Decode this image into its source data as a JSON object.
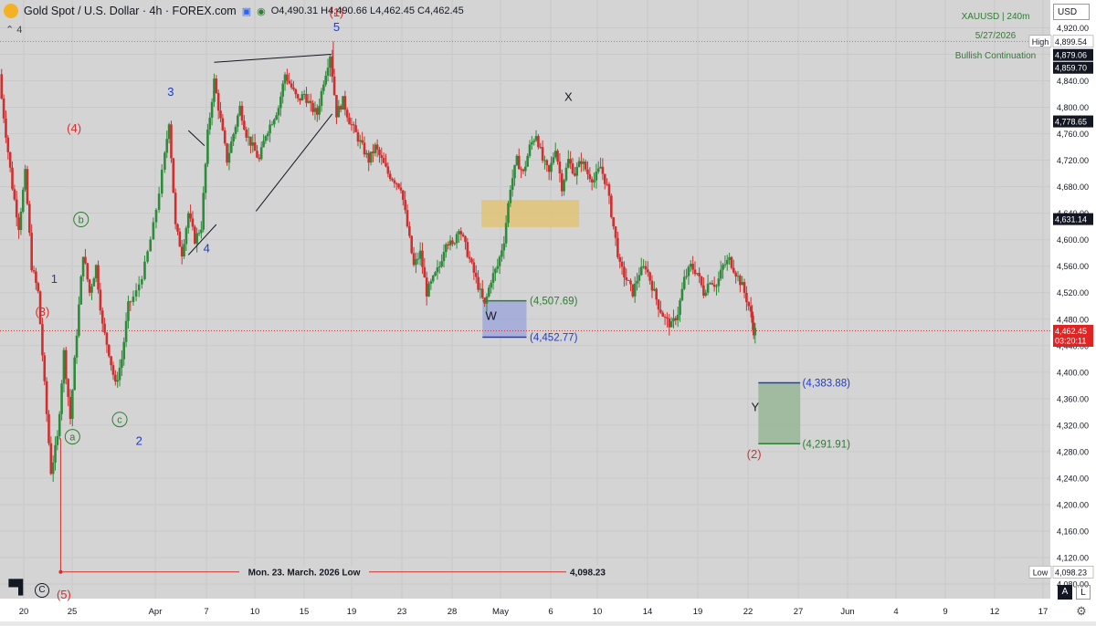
{
  "header": {
    "symbol": "Gold Spot / U.S. Dollar · 4h · FOREX.com",
    "open": "O4,490.31",
    "high": "H4,490.66",
    "low": "L4,462.45",
    "close": "C4,462.45",
    "indicator_toggle": "4"
  },
  "currency_selector": "USD",
  "info_box": {
    "line1": "XAUUSD  |  240m",
    "line2": "5/27/2026",
    "line3": "Bullish Continuation"
  },
  "axis_badges": [
    {
      "label": "High",
      "value": "4,899.54",
      "y": 4899.54,
      "style": "white"
    },
    {
      "label": "",
      "value": "4,879.06",
      "y": 4879.06,
      "style": "black"
    },
    {
      "label": "",
      "value": "4,859.70",
      "y": 4859.7,
      "style": "black"
    },
    {
      "label": "",
      "value": "4,778.65",
      "y": 4778.65,
      "style": "black"
    },
    {
      "label": "",
      "value": "4,631.14",
      "y": 4631.14,
      "style": "black"
    },
    {
      "label": "",
      "value": "4,462.45",
      "y": 4462.45,
      "style": "red",
      "sub": "03:20:11"
    },
    {
      "label": "Low",
      "value": "4,098.23",
      "y": 4098.23,
      "style": "white"
    }
  ],
  "annotations": {
    "wave_labels": [
      {
        "text": "(1)",
        "color": "#d32f2f",
        "x": 18.8,
        "y": 4937
      },
      {
        "text": "5",
        "color": "#1e3ccc",
        "x": 18.8,
        "y": 4915
      },
      {
        "text": "3",
        "color": "#1e3ccc",
        "x": 3.35,
        "y": 4817
      },
      {
        "text": "(4)",
        "color": "#d32f2f",
        "x": -5.65,
        "y": 4762
      },
      {
        "text": "4",
        "color": "#1e3ccc",
        "x": 6.7,
        "y": 4581
      },
      {
        "text": "1",
        "color": "#1e3ccc",
        "x": -7.5,
        "y": 4535
      },
      {
        "text": "(3)",
        "color": "#d32f2f",
        "x": -8.6,
        "y": 4485
      },
      {
        "text": "2",
        "color": "#1e3ccc",
        "x": 0.4,
        "y": 4290
      },
      {
        "text": "X",
        "color": "#131722",
        "x": 40.4,
        "y": 4810
      },
      {
        "text": "W",
        "color": "#131722",
        "x": 33.2,
        "y": 4479
      },
      {
        "text": "Y",
        "color": "#131722",
        "x": 57.8,
        "y": 4341
      },
      {
        "text": "(2)",
        "color": "#d32f2f",
        "x": 57.7,
        "y": 4270
      },
      {
        "text": "(5)",
        "color": "#d32f2f",
        "x": -6.6,
        "y": 4058
      }
    ],
    "circled_labels": [
      {
        "text": "b",
        "x": -5.0,
        "y": 4625
      },
      {
        "text": "c",
        "x": -1.4,
        "y": 4323
      },
      {
        "text": "a",
        "x": -5.8,
        "y": 4297
      }
    ],
    "level_labels": [
      {
        "text": "(4,507.69)",
        "color": "#2e7d32",
        "x": 36.8,
        "y": 4507.69
      },
      {
        "text": "(4,452.77)",
        "color": "#1e3ccc",
        "x": 36.8,
        "y": 4452.77
      },
      {
        "text": "(4,383.88)",
        "color": "#1e3ccc",
        "x": 62.2,
        "y": 4383.88
      },
      {
        "text": "(4,291.91)",
        "color": "#2e7d32",
        "x": 62.2,
        "y": 4291.91
      }
    ],
    "low_line": {
      "text": "Mon. 23. March. 2026 Low",
      "value": "4,098.23",
      "y": 4098.23
    }
  },
  "chart_data": {
    "type": "candlestick",
    "title": "Gold Spot / U.S. Dollar · 4h · FOREX.com",
    "x_unit": "days from Apr 1 2026 (4h bars)",
    "x_ticks": [
      "20",
      "25",
      "Apr",
      "7",
      "10",
      "15",
      "19",
      "23",
      "28",
      "May",
      "6",
      "10",
      "14",
      "19",
      "22",
      "27",
      "Jun",
      "4",
      "9",
      "12",
      "17"
    ],
    "y_ticks": [
      "4,080.00",
      "4,120.00",
      "4,160.00",
      "4,200.00",
      "4,240.00",
      "4,280.00",
      "4,320.00",
      "4,360.00",
      "4,400.00",
      "4,440.00",
      "4,480.00",
      "4,520.00",
      "4,560.00",
      "4,600.00",
      "4,640.00",
      "4,680.00",
      "4,720.00",
      "4,760.00",
      "4,800.00",
      "4,840.00",
      "4,880.00",
      "4,920.00"
    ],
    "ylim": [
      4058,
      4962
    ],
    "xlim": [
      -12.55,
      85.3
    ],
    "grid": true,
    "candles_close_path": [
      [
        -12.4,
        4840
      ],
      [
        -11.8,
        4760
      ],
      [
        -11.2,
        4680
      ],
      [
        -10.6,
        4620
      ],
      [
        -10.0,
        4700
      ],
      [
        -9.4,
        4560
      ],
      [
        -8.8,
        4520
      ],
      [
        -8.2,
        4380
      ],
      [
        -7.6,
        4250
      ],
      [
        -7.0,
        4300
      ],
      [
        -6.4,
        4430
      ],
      [
        -5.8,
        4330
      ],
      [
        -5.2,
        4460
      ],
      [
        -4.6,
        4580
      ],
      [
        -4.0,
        4520
      ],
      [
        -3.4,
        4560
      ],
      [
        -2.8,
        4470
      ],
      [
        -2.2,
        4430
      ],
      [
        -1.6,
        4380
      ],
      [
        -1.0,
        4420
      ],
      [
        -0.4,
        4500
      ],
      [
        0.4,
        4520
      ],
      [
        1.2,
        4560
      ],
      [
        2.0,
        4620
      ],
      [
        2.8,
        4700
      ],
      [
        3.4,
        4780
      ],
      [
        4.0,
        4620
      ],
      [
        4.6,
        4580
      ],
      [
        5.2,
        4640
      ],
      [
        5.8,
        4600
      ],
      [
        6.4,
        4620
      ],
      [
        7.0,
        4760
      ],
      [
        7.6,
        4840
      ],
      [
        8.2,
        4780
      ],
      [
        8.8,
        4720
      ],
      [
        9.4,
        4760
      ],
      [
        10.0,
        4800
      ],
      [
        10.6,
        4760
      ],
      [
        11.2,
        4740
      ],
      [
        11.8,
        4720
      ],
      [
        12.4,
        4760
      ],
      [
        13.0,
        4780
      ],
      [
        13.6,
        4800
      ],
      [
        14.2,
        4850
      ],
      [
        14.8,
        4830
      ],
      [
        15.4,
        4810
      ],
      [
        16.0,
        4820
      ],
      [
        16.6,
        4800
      ],
      [
        17.2,
        4790
      ],
      [
        17.8,
        4840
      ],
      [
        18.4,
        4880
      ],
      [
        19.0,
        4790
      ],
      [
        19.6,
        4810
      ],
      [
        20.2,
        4780
      ],
      [
        20.8,
        4760
      ],
      [
        21.4,
        4740
      ],
      [
        22.0,
        4720
      ],
      [
        22.6,
        4740
      ],
      [
        23.2,
        4720
      ],
      [
        23.8,
        4700
      ],
      [
        24.4,
        4690
      ],
      [
        25.0,
        4680
      ],
      [
        25.6,
        4620
      ],
      [
        26.2,
        4560
      ],
      [
        26.8,
        4580
      ],
      [
        27.4,
        4520
      ],
      [
        28.0,
        4540
      ],
      [
        28.6,
        4560
      ],
      [
        29.2,
        4600
      ],
      [
        29.8,
        4590
      ],
      [
        30.4,
        4620
      ],
      [
        31.0,
        4590
      ],
      [
        31.6,
        4560
      ],
      [
        32.2,
        4530
      ],
      [
        32.8,
        4500
      ],
      [
        33.4,
        4540
      ],
      [
        34.0,
        4560
      ],
      [
        34.6,
        4600
      ],
      [
        35.2,
        4680
      ],
      [
        35.8,
        4720
      ],
      [
        36.4,
        4700
      ],
      [
        37.0,
        4740
      ],
      [
        37.6,
        4760
      ],
      [
        38.2,
        4720
      ],
      [
        38.8,
        4700
      ],
      [
        39.4,
        4740
      ],
      [
        40.0,
        4680
      ],
      [
        40.6,
        4720
      ],
      [
        41.2,
        4700
      ],
      [
        41.8,
        4720
      ],
      [
        42.4,
        4700
      ],
      [
        43.0,
        4690
      ],
      [
        43.6,
        4710
      ],
      [
        44.2,
        4680
      ],
      [
        44.8,
        4620
      ],
      [
        45.4,
        4560
      ],
      [
        46.0,
        4540
      ],
      [
        46.6,
        4520
      ],
      [
        47.2,
        4550
      ],
      [
        47.8,
        4560
      ],
      [
        48.4,
        4530
      ],
      [
        49.0,
        4500
      ],
      [
        49.6,
        4480
      ],
      [
        50.2,
        4470
      ],
      [
        50.8,
        4490
      ],
      [
        51.4,
        4540
      ],
      [
        52.0,
        4560
      ],
      [
        52.6,
        4550
      ],
      [
        53.2,
        4520
      ],
      [
        53.8,
        4540
      ],
      [
        54.4,
        4530
      ],
      [
        55.0,
        4560
      ],
      [
        55.6,
        4570
      ],
      [
        56.2,
        4550
      ],
      [
        56.8,
        4530
      ],
      [
        57.4,
        4500
      ],
      [
        57.8,
        4462.45
      ]
    ],
    "max_high": {
      "x": 18.5,
      "y": 4899.54
    },
    "min_low": {
      "x": -6.9,
      "y": 4098.23
    },
    "last_price": 4462.45,
    "zones": [
      {
        "name": "resistance box",
        "x0": 32.3,
        "x1": 41.4,
        "y0": 4619,
        "y1": 4660,
        "color": "#e3c26a"
      },
      {
        "name": "W box",
        "x0": 32.4,
        "x1": 36.5,
        "y0": 4452.77,
        "y1": 4507.69,
        "color": "#9aa3d9"
      },
      {
        "name": "Y box",
        "x0": 58.1,
        "x1": 62.0,
        "y0": 4291.91,
        "y1": 4383.88,
        "color": "#8fb38f"
      }
    ],
    "triangle_lines": [
      [
        [
          5.0,
          4577
        ],
        [
          7.6,
          4623
        ]
      ],
      [
        [
          5.0,
          4765
        ],
        [
          6.5,
          4742
        ]
      ],
      [
        [
          7.4,
          4868
        ],
        [
          18.3,
          4880
        ]
      ],
      [
        [
          11.3,
          4643
        ],
        [
          18.4,
          4790
        ]
      ]
    ]
  },
  "bottom_icons": {
    "auto": "A",
    "log": "L",
    "settings": "settings-icon",
    "tv": "tv-logo-icon",
    "c": "copyright-icon"
  }
}
